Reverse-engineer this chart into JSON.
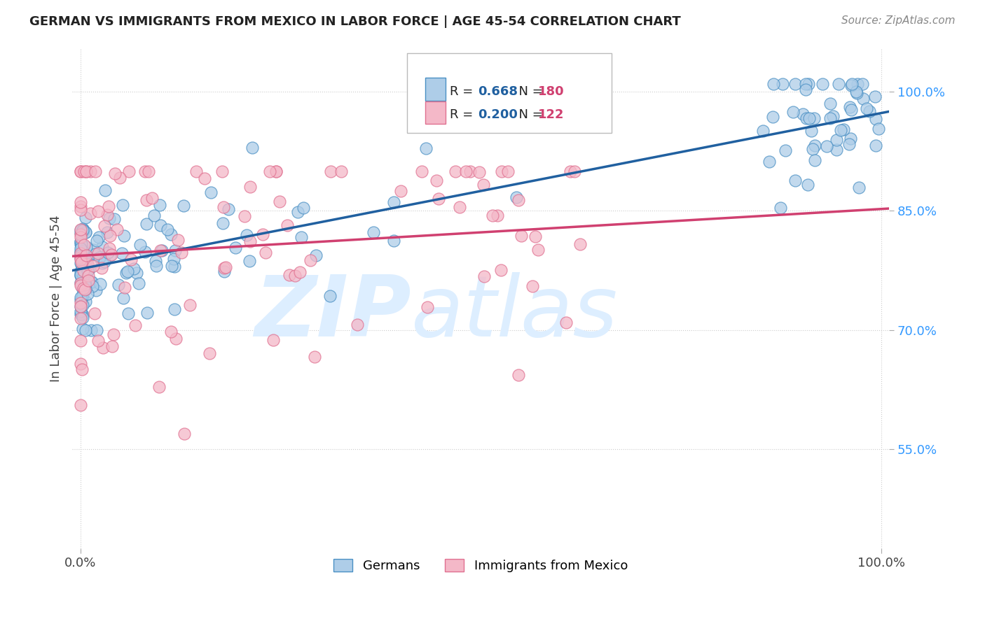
{
  "title": "GERMAN VS IMMIGRANTS FROM MEXICO IN LABOR FORCE | AGE 45-54 CORRELATION CHART",
  "source": "Source: ZipAtlas.com",
  "ylabel": "In Labor Force | Age 45-54",
  "blue_R": 0.668,
  "blue_N": 180,
  "pink_R": 0.2,
  "pink_N": 122,
  "blue_fill_color": "#aecde8",
  "blue_edge_color": "#4a90c4",
  "pink_fill_color": "#f4b8c8",
  "pink_edge_color": "#e07090",
  "blue_line_color": "#2060a0",
  "pink_line_color": "#d04070",
  "legend_blue_color": "#2060a0",
  "legend_pink_color": "#d04070",
  "background_color": "#ffffff",
  "grid_color": "#cccccc",
  "title_color": "#222222",
  "ytick_color": "#3399ff",
  "watermark_zip": "ZIP",
  "watermark_atlas": "atlas",
  "watermark_color": "#ddeeff",
  "blue_line_x0": 0.0,
  "blue_line_x1": 1.0,
  "blue_line_y0": 0.775,
  "blue_line_y1": 0.975,
  "pink_line_x0": 0.0,
  "pink_line_x1": 1.0,
  "pink_line_y0": 0.793,
  "pink_line_y1": 0.853,
  "ylim_low": 0.425,
  "ylim_high": 1.055,
  "xlim_low": -0.01,
  "xlim_high": 1.01
}
